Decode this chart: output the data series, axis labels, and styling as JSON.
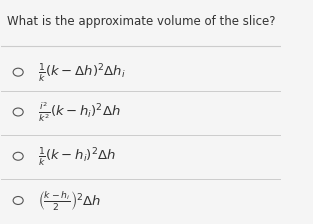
{
  "title": "What is the approximate volume of the slice?",
  "options": [
    "$\\frac{1}{k}(k - \\Delta h)^2 \\Delta h_i$",
    "$\\frac{i^2}{k^2}(k - h_i)^2 \\Delta h$",
    "$\\frac{1}{k}(k - h_i)^2 \\Delta h$",
    "$\\left(\\frac{k - h_i}{2}\\right)^2 \\Delta h$"
  ],
  "bg_color": "#f5f5f5",
  "text_color": "#333333",
  "title_fontsize": 8.5,
  "option_fontsize": 9.5,
  "circle_color": "#555555",
  "line_color": "#cccccc"
}
